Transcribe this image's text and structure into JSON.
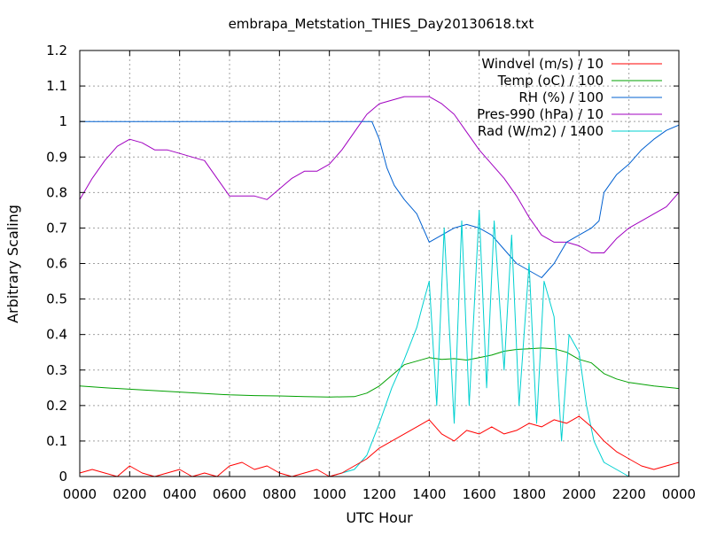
{
  "chart_data": {
    "type": "line",
    "title": "embrapa_Metstation_THIES_Day20130618.txt",
    "xlabel": "UTC Hour",
    "ylabel": "Arbitrary Scaling",
    "xlim": [
      0,
      24
    ],
    "ylim": [
      0,
      1.2
    ],
    "grid": true,
    "legend_position": "top-right",
    "xtick_labels": [
      "0000",
      "0200",
      "0400",
      "0600",
      "0800",
      "1000",
      "1200",
      "1400",
      "1600",
      "1800",
      "2000",
      "2200",
      "0000"
    ],
    "ytick_labels": [
      "0",
      "0.1",
      "0.2",
      "0.3",
      "0.4",
      "0.5",
      "0.6",
      "0.7",
      "0.8",
      "0.9",
      "1",
      "1.1",
      "1.2"
    ],
    "series": [
      {
        "name": "Windvel (m/s) / 10",
        "color": "#ff0000",
        "x": [
          0,
          0.5,
          1,
          1.5,
          2,
          2.5,
          3,
          3.5,
          4,
          4.5,
          5,
          5.5,
          6,
          6.5,
          7,
          7.5,
          8,
          8.5,
          9,
          9.5,
          10,
          10.5,
          11,
          11.5,
          12,
          12.5,
          13,
          13.5,
          14,
          14.5,
          15,
          15.5,
          16,
          16.5,
          17,
          17.5,
          18,
          18.5,
          19,
          19.5,
          20,
          20.5,
          21,
          21.5,
          22,
          22.5,
          23,
          23.5,
          24
        ],
        "values": [
          0.01,
          0.02,
          0.01,
          0.0,
          0.03,
          0.01,
          0.0,
          0.01,
          0.02,
          0.0,
          0.01,
          0.0,
          0.03,
          0.04,
          0.02,
          0.03,
          0.01,
          0.0,
          0.01,
          0.02,
          0.0,
          0.01,
          0.03,
          0.05,
          0.08,
          0.1,
          0.12,
          0.14,
          0.16,
          0.12,
          0.1,
          0.13,
          0.12,
          0.14,
          0.12,
          0.13,
          0.15,
          0.14,
          0.16,
          0.15,
          0.17,
          0.14,
          0.1,
          0.07,
          0.05,
          0.03,
          0.02,
          0.03,
          0.04
        ]
      },
      {
        "name": "Temp (oC) / 100",
        "color": "#00a000",
        "x": [
          0,
          1,
          2,
          3,
          4,
          5,
          6,
          7,
          8,
          9,
          10,
          11,
          11.5,
          12,
          12.5,
          13,
          13.5,
          14,
          14.5,
          15,
          15.5,
          16,
          16.5,
          17,
          17.5,
          18,
          18.5,
          19,
          19.5,
          20,
          20.5,
          21,
          21.5,
          22,
          23,
          24
        ],
        "values": [
          0.255,
          0.25,
          0.246,
          0.242,
          0.238,
          0.234,
          0.23,
          0.228,
          0.227,
          0.225,
          0.224,
          0.225,
          0.235,
          0.255,
          0.285,
          0.315,
          0.325,
          0.335,
          0.33,
          0.332,
          0.328,
          0.335,
          0.342,
          0.353,
          0.358,
          0.36,
          0.362,
          0.36,
          0.35,
          0.33,
          0.32,
          0.29,
          0.275,
          0.265,
          0.255,
          0.248
        ]
      },
      {
        "name": "RH (%) / 100",
        "color": "#0060d0",
        "x": [
          0,
          1,
          2,
          3,
          4,
          5,
          6,
          7,
          8,
          9,
          10,
          11,
          11.7,
          12,
          12.3,
          12.6,
          13,
          13.5,
          14,
          14.5,
          15,
          15.5,
          16,
          16.5,
          17,
          17.5,
          18,
          18.5,
          19,
          19.5,
          20,
          20.5,
          20.8,
          21,
          21.5,
          22,
          22.5,
          23,
          23.5,
          24
        ],
        "values": [
          1.0,
          1.0,
          1.0,
          1.0,
          1.0,
          1.0,
          1.0,
          1.0,
          1.0,
          1.0,
          1.0,
          1.0,
          1.0,
          0.95,
          0.87,
          0.82,
          0.78,
          0.74,
          0.66,
          0.68,
          0.7,
          0.71,
          0.7,
          0.68,
          0.64,
          0.6,
          0.58,
          0.56,
          0.6,
          0.66,
          0.68,
          0.7,
          0.72,
          0.8,
          0.85,
          0.88,
          0.92,
          0.95,
          0.975,
          0.99
        ]
      },
      {
        "name": "Pres-990 (hPa) / 10",
        "color": "#a000c0",
        "x": [
          0,
          0.5,
          1,
          1.5,
          2,
          2.5,
          3,
          3.5,
          4,
          4.5,
          5,
          5.5,
          6,
          6.5,
          7,
          7.5,
          8,
          8.5,
          9,
          9.5,
          10,
          10.5,
          11,
          11.5,
          12,
          12.5,
          13,
          13.5,
          14,
          14.5,
          15,
          15.5,
          16,
          16.5,
          17,
          17.5,
          18,
          18.5,
          19,
          19.5,
          20,
          20.5,
          21,
          21.5,
          22,
          22.5,
          23,
          23.5,
          24
        ],
        "values": [
          0.78,
          0.84,
          0.89,
          0.93,
          0.95,
          0.94,
          0.92,
          0.92,
          0.91,
          0.9,
          0.89,
          0.84,
          0.79,
          0.79,
          0.79,
          0.78,
          0.81,
          0.84,
          0.86,
          0.86,
          0.88,
          0.92,
          0.97,
          1.02,
          1.05,
          1.06,
          1.07,
          1.07,
          1.07,
          1.05,
          1.02,
          0.97,
          0.92,
          0.88,
          0.84,
          0.79,
          0.73,
          0.68,
          0.66,
          0.66,
          0.65,
          0.63,
          0.63,
          0.67,
          0.7,
          0.72,
          0.74,
          0.76,
          0.8
        ]
      },
      {
        "name": "Rad (W/m2) / 1400",
        "color": "#00d0d0",
        "x": [
          0,
          1,
          2,
          3,
          4,
          5,
          6,
          7,
          8,
          9,
          10,
          10.5,
          11,
          11.5,
          12,
          12.5,
          13,
          13.5,
          13.8,
          14,
          14.3,
          14.6,
          15,
          15.3,
          15.6,
          16,
          16.3,
          16.6,
          17,
          17.3,
          17.6,
          18,
          18.3,
          18.6,
          19,
          19.3,
          19.6,
          20,
          20.3,
          20.6,
          21,
          21.5,
          22,
          23,
          24
        ],
        "values": [
          0.0,
          0.0,
          0.0,
          0.0,
          0.0,
          0.0,
          0.0,
          0.0,
          0.0,
          0.0,
          0.0,
          0.01,
          0.02,
          0.06,
          0.15,
          0.25,
          0.33,
          0.42,
          0.5,
          0.55,
          0.2,
          0.7,
          0.15,
          0.72,
          0.2,
          0.75,
          0.25,
          0.72,
          0.3,
          0.68,
          0.2,
          0.6,
          0.15,
          0.55,
          0.45,
          0.1,
          0.4,
          0.35,
          0.2,
          0.1,
          0.04,
          0.02,
          0.0,
          0.0,
          0.0
        ]
      }
    ]
  }
}
